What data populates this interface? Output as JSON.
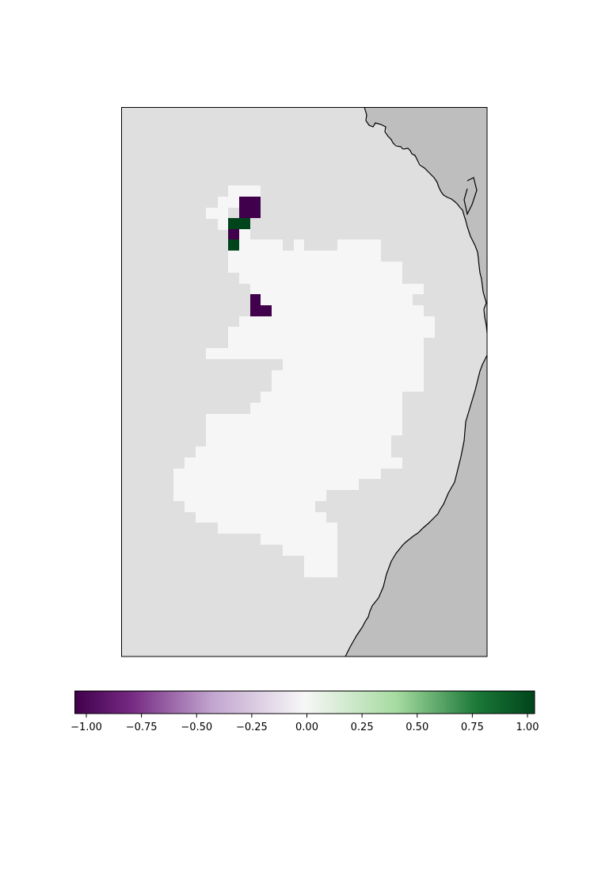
{
  "map": {
    "land_color": "#bebebe",
    "ocean_color": "#dfdfdf",
    "zero_cell_color": "#f6f6f6",
    "coastline_color": "#000000",
    "cells": {
      "zero_value": 0,
      "anomalies": [
        {
          "value": -1.0,
          "name": "anomaly-cell-north-negative"
        },
        {
          "value": 1.0,
          "name": "anomaly-cell-north-positive-a"
        },
        {
          "value": -1.0,
          "name": "anomaly-cell-north-negative-b"
        },
        {
          "value": 1.0,
          "name": "anomaly-cell-north-positive-b"
        },
        {
          "value": -1.0,
          "name": "anomaly-cell-central-negative"
        }
      ]
    }
  },
  "colorbar": {
    "colormap": "PRGn",
    "vmin": -1.0,
    "vmax": 1.0,
    "colors": {
      "min": "#40004b",
      "low": "#762a83",
      "mid_low": "#c2a5cf",
      "center": "#f7f7f7",
      "mid_high": "#a6dba0",
      "high": "#1b7837",
      "max": "#00441b"
    },
    "ticks": [
      {
        "value": -1.0,
        "label": "−1.00"
      },
      {
        "value": -0.75,
        "label": "−0.75"
      },
      {
        "value": -0.5,
        "label": "−0.50"
      },
      {
        "value": -0.25,
        "label": "−0.25"
      },
      {
        "value": 0.0,
        "label": "0.00"
      },
      {
        "value": 0.25,
        "label": "0.25"
      },
      {
        "value": 0.5,
        "label": "0.50"
      },
      {
        "value": 0.75,
        "label": "0.75"
      },
      {
        "value": 1.0,
        "label": "1.00"
      }
    ]
  }
}
